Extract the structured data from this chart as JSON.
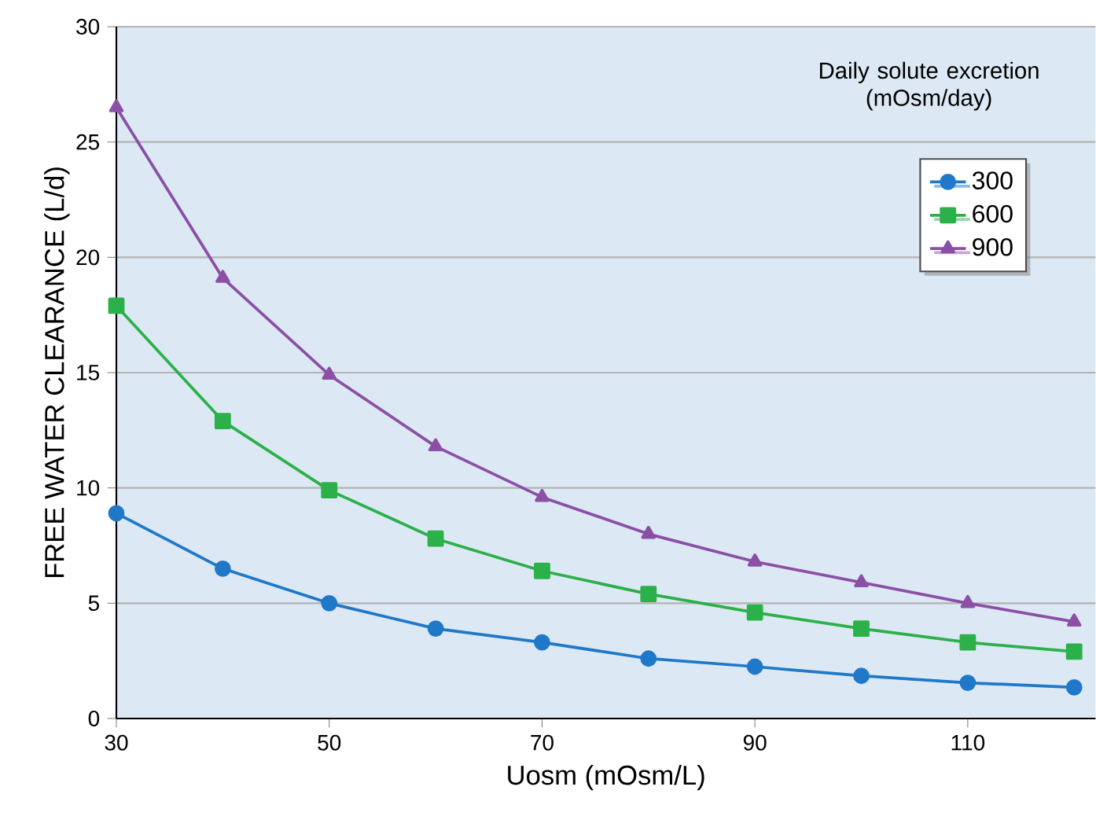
{
  "chart_data": {
    "type": "line",
    "xlabel": "Uosm (mOsm/L)",
    "ylabel": "FREE WATER CLEARANCE (L/d)",
    "legend_title": "Daily solute excretion (mOsm/day)",
    "x": [
      30,
      40,
      50,
      60,
      70,
      80,
      90,
      100,
      110,
      120
    ],
    "series": [
      {
        "name": "300",
        "color": "#1f78c8",
        "marker": "circle",
        "values": [
          8.9,
          6.5,
          5.0,
          3.9,
          3.3,
          2.6,
          2.25,
          1.85,
          1.55,
          1.35
        ]
      },
      {
        "name": "600",
        "color": "#2cb04a",
        "marker": "square",
        "values": [
          17.9,
          12.9,
          9.9,
          7.8,
          6.4,
          5.4,
          4.6,
          3.9,
          3.3,
          2.9
        ]
      },
      {
        "name": "900",
        "color": "#8b4fa6",
        "marker": "triangle",
        "values": [
          26.5,
          19.1,
          14.9,
          11.8,
          9.6,
          8.0,
          6.8,
          5.9,
          5.0,
          4.2
        ]
      }
    ],
    "xlim": [
      30,
      122
    ],
    "xticks": [
      30,
      50,
      70,
      90,
      110
    ],
    "ylim": [
      0,
      30
    ],
    "yticks": [
      0,
      5,
      10,
      15,
      20,
      25,
      30
    ],
    "grid": "y",
    "legend": "top right",
    "line_style": "solid"
  }
}
